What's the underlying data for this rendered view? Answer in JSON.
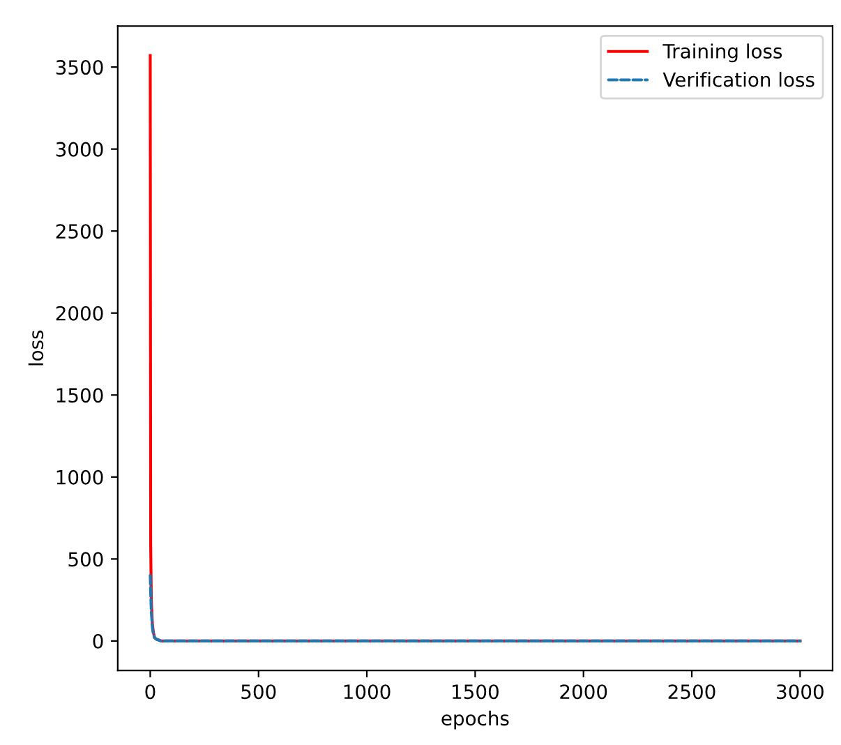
{
  "chart_data": {
    "type": "line",
    "xlabel": "epochs",
    "ylabel": "loss",
    "x": [
      0,
      2,
      5,
      10,
      15,
      20,
      30,
      50,
      100,
      500,
      1000,
      1500,
      2000,
      2500,
      3000
    ],
    "series": [
      {
        "name": "Training loss",
        "color": "#ff0000",
        "line_style": "solid",
        "values": [
          3570,
          600,
          250,
          100,
          50,
          20,
          10,
          0,
          0,
          0,
          0,
          0,
          0,
          0,
          0
        ]
      },
      {
        "name": "Verification loss",
        "color": "#1f77b4",
        "line_style": "dashed",
        "values": [
          400,
          300,
          180,
          80,
          40,
          20,
          10,
          0,
          0,
          0,
          0,
          0,
          0,
          0,
          0
        ]
      }
    ],
    "xlim": [
      -150,
      3150
    ],
    "ylim": [
      -180,
      3750
    ],
    "xticks": [
      0,
      500,
      1000,
      1500,
      2000,
      2500,
      3000
    ],
    "yticks": [
      0,
      500,
      1000,
      1500,
      2000,
      2500,
      3000,
      3500
    ],
    "grid": false,
    "legend": "top right",
    "marker": "none"
  }
}
